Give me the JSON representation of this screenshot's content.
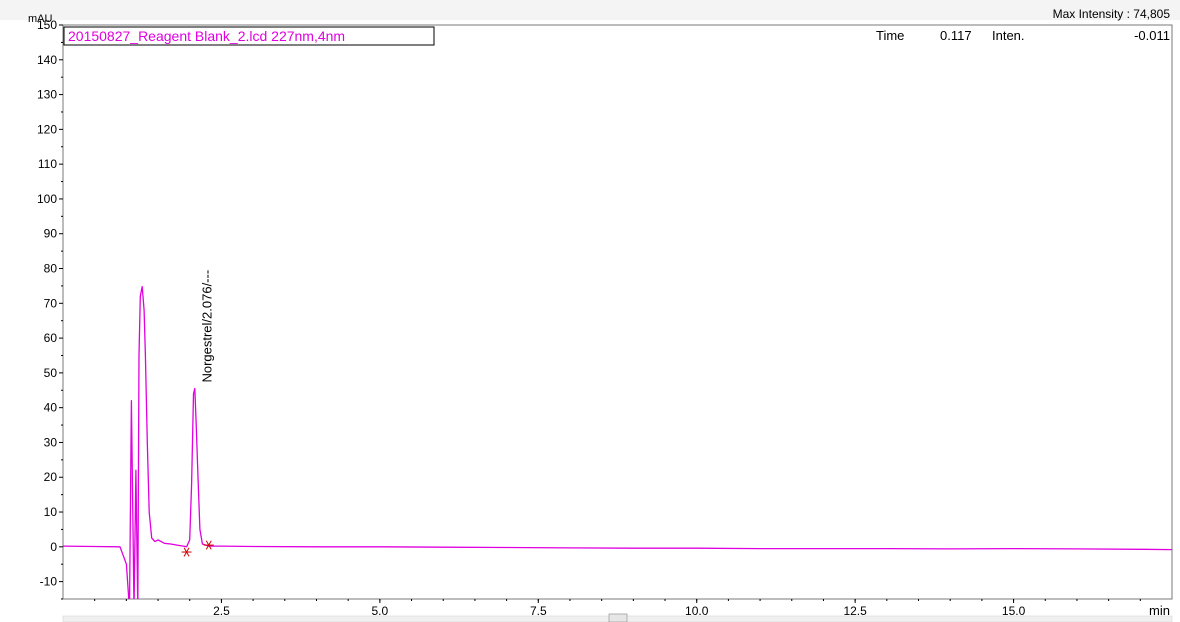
{
  "chart_data": {
    "type": "line",
    "ylabel": "mAU",
    "xlabel": "min",
    "max_intensity_label": "Max Intensity : 74,805",
    "trace_label": "20150827_Reagent Blank_2.lcd 227nm,4nm",
    "readout": {
      "time_label": "Time",
      "time_value": "0.117",
      "inten_label": "Inten.",
      "inten_value": "-0.011"
    },
    "xlim": [
      0.0,
      17.5
    ],
    "ylim": [
      -15,
      150
    ],
    "x_ticks": [
      2.5,
      5.0,
      7.5,
      10.0,
      12.5,
      15.0
    ],
    "x_tick_labels": [
      "2.5",
      "5.0",
      "7.5",
      "10.0",
      "12.5",
      "15.0"
    ],
    "y_ticks": [
      -10,
      0,
      10,
      20,
      30,
      40,
      50,
      60,
      70,
      80,
      90,
      100,
      110,
      120,
      130,
      140,
      150
    ],
    "y_tick_labels": [
      "-10",
      "0",
      "10",
      "20",
      "30",
      "40",
      "50",
      "60",
      "70",
      "80",
      "90",
      "100",
      "110",
      "120",
      "130",
      "140",
      "150"
    ],
    "series_color": "#e000e0",
    "marker_color": "#d00000",
    "series": [
      {
        "x": [
          0.0,
          0.5,
          0.9,
          1.0,
          1.05,
          1.08,
          1.12,
          1.15,
          1.18,
          1.2,
          1.22,
          1.25,
          1.28,
          1.3,
          1.33,
          1.36,
          1.4,
          1.45,
          1.5,
          1.55,
          1.6,
          1.7,
          1.8,
          1.9,
          1.95,
          2.0,
          2.03,
          2.06,
          2.08,
          2.1,
          2.13,
          2.16,
          2.2,
          2.3,
          2.5,
          3.0,
          4.0,
          5.0,
          6.0,
          7.0,
          8.0,
          9.0,
          10.0,
          11.0,
          12.0,
          13.0,
          14.0,
          15.0,
          16.0,
          17.0,
          17.5
        ],
        "y": [
          0.2,
          0.1,
          0.0,
          -5,
          -18,
          42,
          -18,
          22,
          -18,
          55,
          72,
          74.8,
          68,
          55,
          30,
          10,
          2.5,
          1.5,
          2.0,
          1.5,
          1.0,
          0.8,
          0.5,
          0.2,
          0.0,
          2,
          18,
          44,
          45.5,
          36,
          20,
          5,
          0.8,
          0.2,
          0.2,
          0.1,
          0.0,
          0.0,
          -0.1,
          -0.2,
          -0.3,
          -0.4,
          -0.4,
          -0.5,
          -0.5,
          -0.5,
          -0.6,
          -0.5,
          -0.6,
          -0.7,
          -0.8
        ]
      }
    ],
    "markers": [
      {
        "x": 1.95,
        "y": -1.5
      },
      {
        "x": 2.3,
        "y": 0.5
      }
    ],
    "annotations": [
      {
        "text": "Norgestrel/2.076/---",
        "x": 2.076,
        "y": 45.5
      }
    ]
  }
}
